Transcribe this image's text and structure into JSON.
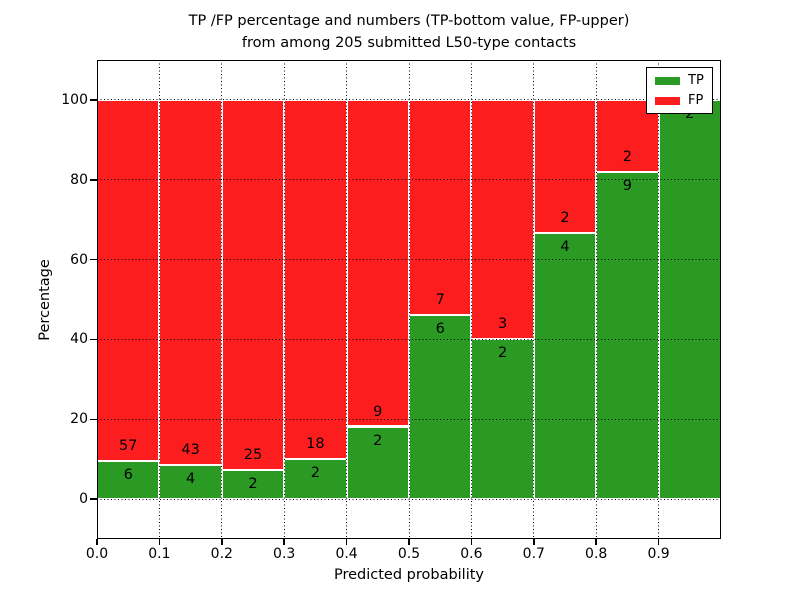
{
  "chart_data": {
    "type": "bar",
    "stacked": true,
    "normalized": "percent",
    "title_lines": [
      "TP /FP percentage and numbers (TP-bottom value, FP-upper)",
      "from among 205 submitted L50-type contacts"
    ],
    "xlabel": "Predicted probability",
    "ylabel": "Percentage",
    "total_contacts": 205,
    "xlim": [
      0.0,
      1.0
    ],
    "ylim": [
      -10,
      110
    ],
    "bin_width": 0.1,
    "categories": [
      "0.0-0.1",
      "0.1-0.2",
      "0.2-0.3",
      "0.3-0.4",
      "0.4-0.5",
      "0.5-0.6",
      "0.6-0.7",
      "0.7-0.8",
      "0.8-0.9",
      "0.9-1.0"
    ],
    "series": [
      {
        "name": "TP",
        "color": "#2b9a24",
        "counts": [
          6,
          4,
          2,
          2,
          2,
          6,
          2,
          4,
          9,
          2
        ]
      },
      {
        "name": "FP",
        "color": "#fc1e1e",
        "counts": [
          57,
          43,
          25,
          18,
          9,
          7,
          3,
          2,
          2,
          0
        ]
      }
    ],
    "annotation_rule": "FP count above TP/FP boundary, TP count below boundary; FP label omitted when FP count is 0",
    "x_tick_labels": [
      "0.0",
      "0.1",
      "0.2",
      "0.3",
      "0.4",
      "0.5",
      "0.6",
      "0.7",
      "0.8",
      "0.9"
    ],
    "y_tick_labels": [
      "0",
      "20",
      "40",
      "60",
      "80",
      "100"
    ],
    "y_tick_values": [
      0,
      20,
      40,
      60,
      80,
      100
    ],
    "grid": {
      "style": "dotted",
      "color": "#000000",
      "above_bars": true
    },
    "legend": {
      "position": "upper right",
      "entries": [
        "TP",
        "FP"
      ]
    },
    "colors": {
      "tp": "#2b9a24",
      "fp": "#fc1e1e",
      "background": "#ffffff",
      "text": "#000000"
    }
  }
}
